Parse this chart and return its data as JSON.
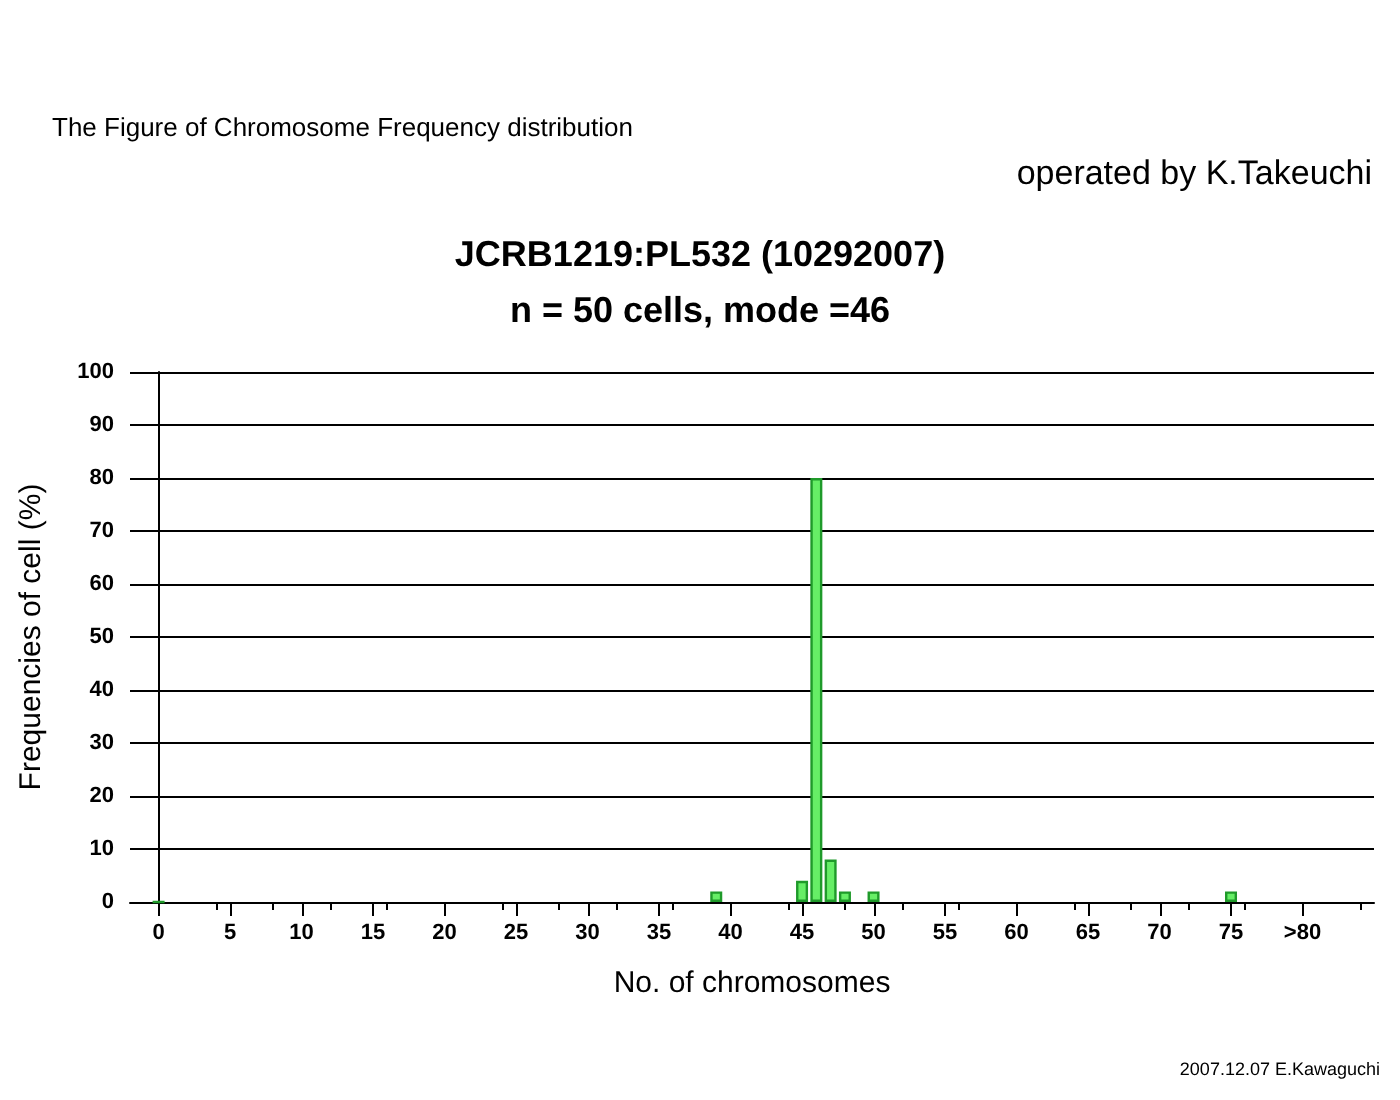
{
  "chart_data": {
    "type": "bar",
    "title": "JCRB1219:PL532 (10292007)",
    "subtitle": "n = 50 cells, mode =46",
    "xlabel": "No. of chromosomes",
    "ylabel": "Frequencies of cell (%)",
    "x": [
      0,
      39,
      45,
      46,
      47,
      48,
      50,
      75
    ],
    "series": [
      {
        "color": "#66ee66",
        "values": [
          0,
          2,
          4,
          80,
          8,
          2,
          2,
          2
        ]
      }
    ],
    "xlim": [
      -2,
      85
    ],
    "xticks": [
      0,
      5,
      10,
      15,
      20,
      25,
      30,
      35,
      40,
      45,
      50,
      55,
      60,
      65,
      70,
      75,
      {
        "value": 80,
        "label": ">80"
      }
    ],
    "ylim": [
      0,
      100
    ],
    "yticks": [
      0,
      10,
      20,
      30,
      40,
      50,
      60,
      70,
      80,
      90,
      100
    ],
    "grid": "y",
    "annotations": [
      "The Figure of Chromosome Frequency distribution",
      "operated by K.Takeuchi",
      "2007.12.07 E.Kawaguchi"
    ]
  }
}
